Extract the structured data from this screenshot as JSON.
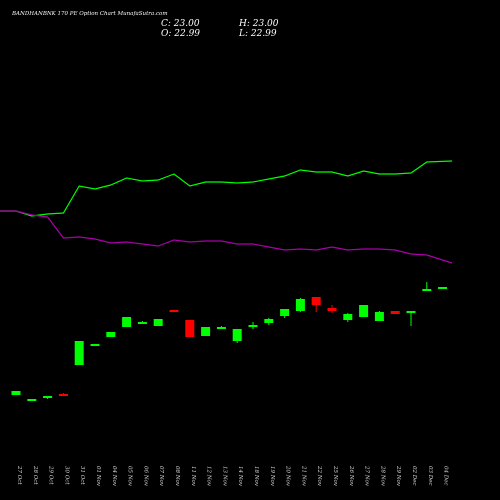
{
  "header": {
    "title": "BANDHANBNK 170 PE Option Chart MunafaSutra.com",
    "close_label": "C: 23.00",
    "high_label": "H: 23.00",
    "open_label": "O: 22.99",
    "low_label": "L: 22.99"
  },
  "colors": {
    "background": "#000000",
    "up": "#00ff00",
    "down": "#ff0000",
    "upper_line": "#00ff00",
    "lower_line": "#aa00aa",
    "text": "#ffffff"
  },
  "chart_data": {
    "type": "candlestick",
    "x_labels": [
      "27 Oct",
      "28 Oct",
      "29 Oct",
      "30 Oct",
      "31 Oct",
      "01 Nov",
      "04 Nov",
      "05 Nov",
      "06 Nov",
      "07 Nov",
      "08 Nov",
      "11 Nov",
      "12 Nov",
      "13 Nov",
      "14 Nov",
      "18 Nov",
      "19 Nov",
      "20 Nov",
      "21 Nov",
      "22 Nov",
      "25 Nov",
      "26 Nov",
      "27 Nov",
      "28 Nov",
      "29 Nov",
      "02 Dec",
      "03 Dec",
      "04 Dec"
    ],
    "candles": [
      {
        "open": 105,
        "high": 109,
        "low": 105,
        "close": 109
      },
      {
        "open": 99,
        "high": 101,
        "low": 99,
        "close": 101
      },
      {
        "open": 102,
        "high": 104,
        "low": 101,
        "close": 104
      },
      {
        "open": 106,
        "high": 107,
        "low": 104,
        "close": 105
      },
      {
        "open": 135,
        "high": 159,
        "low": 135,
        "close": 159
      },
      {
        "open": 155,
        "high": 156,
        "low": 155,
        "close": 156
      },
      {
        "open": 163,
        "high": 168,
        "low": 163,
        "close": 168
      },
      {
        "open": 173,
        "high": 183,
        "low": 173,
        "close": 183
      },
      {
        "open": 178,
        "high": 179,
        "low": 177,
        "close": 178
      },
      {
        "open": 174,
        "high": 181,
        "low": 174,
        "close": 181
      },
      {
        "open": 190,
        "high": 190,
        "low": 189,
        "close": 189
      },
      {
        "open": 180,
        "high": 180,
        "low": 163,
        "close": 163
      },
      {
        "open": 164,
        "high": 173,
        "low": 164,
        "close": 173
      },
      {
        "open": 172,
        "high": 174,
        "low": 171,
        "close": 173
      },
      {
        "open": 159,
        "high": 171,
        "low": 157,
        "close": 171
      },
      {
        "open": 175,
        "high": 178,
        "low": 171,
        "close": 175
      },
      {
        "open": 177,
        "high": 182,
        "low": 175,
        "close": 181
      },
      {
        "open": 184,
        "high": 191,
        "low": 182,
        "close": 191
      },
      {
        "open": 189,
        "high": 202,
        "low": 188,
        "close": 201
      },
      {
        "open": 203,
        "high": 203,
        "low": 188,
        "close": 195
      },
      {
        "open": 192,
        "high": 195,
        "low": 187,
        "close": 189
      },
      {
        "open": 180,
        "high": 187,
        "low": 178,
        "close": 186
      },
      {
        "open": 183,
        "high": 195,
        "low": 183,
        "close": 195
      },
      {
        "open": 179,
        "high": 189,
        "low": 179,
        "close": 188
      },
      {
        "open": 189,
        "high": 189,
        "low": 186,
        "close": 186
      },
      {
        "open": 187,
        "high": 189,
        "low": 174,
        "close": 189
      },
      {
        "open": 210,
        "high": 218,
        "low": 210,
        "close": 211
      },
      {
        "open": 212,
        "high": 213,
        "low": 212,
        "close": 213
      }
    ],
    "upper_line": [
      289,
      289,
      284,
      286,
      287,
      314,
      311,
      315,
      322,
      319,
      320,
      326,
      314,
      318,
      318,
      317,
      318,
      321,
      324,
      330,
      328,
      328,
      324,
      329,
      326,
      326,
      327,
      338,
      339
    ],
    "lower_line": [
      289,
      289,
      285,
      283,
      262,
      263,
      261,
      257,
      258,
      256,
      254,
      260,
      258,
      259,
      259,
      256,
      256,
      253,
      250,
      251,
      250,
      253,
      250,
      251,
      251,
      250,
      246,
      245,
      237
    ]
  }
}
